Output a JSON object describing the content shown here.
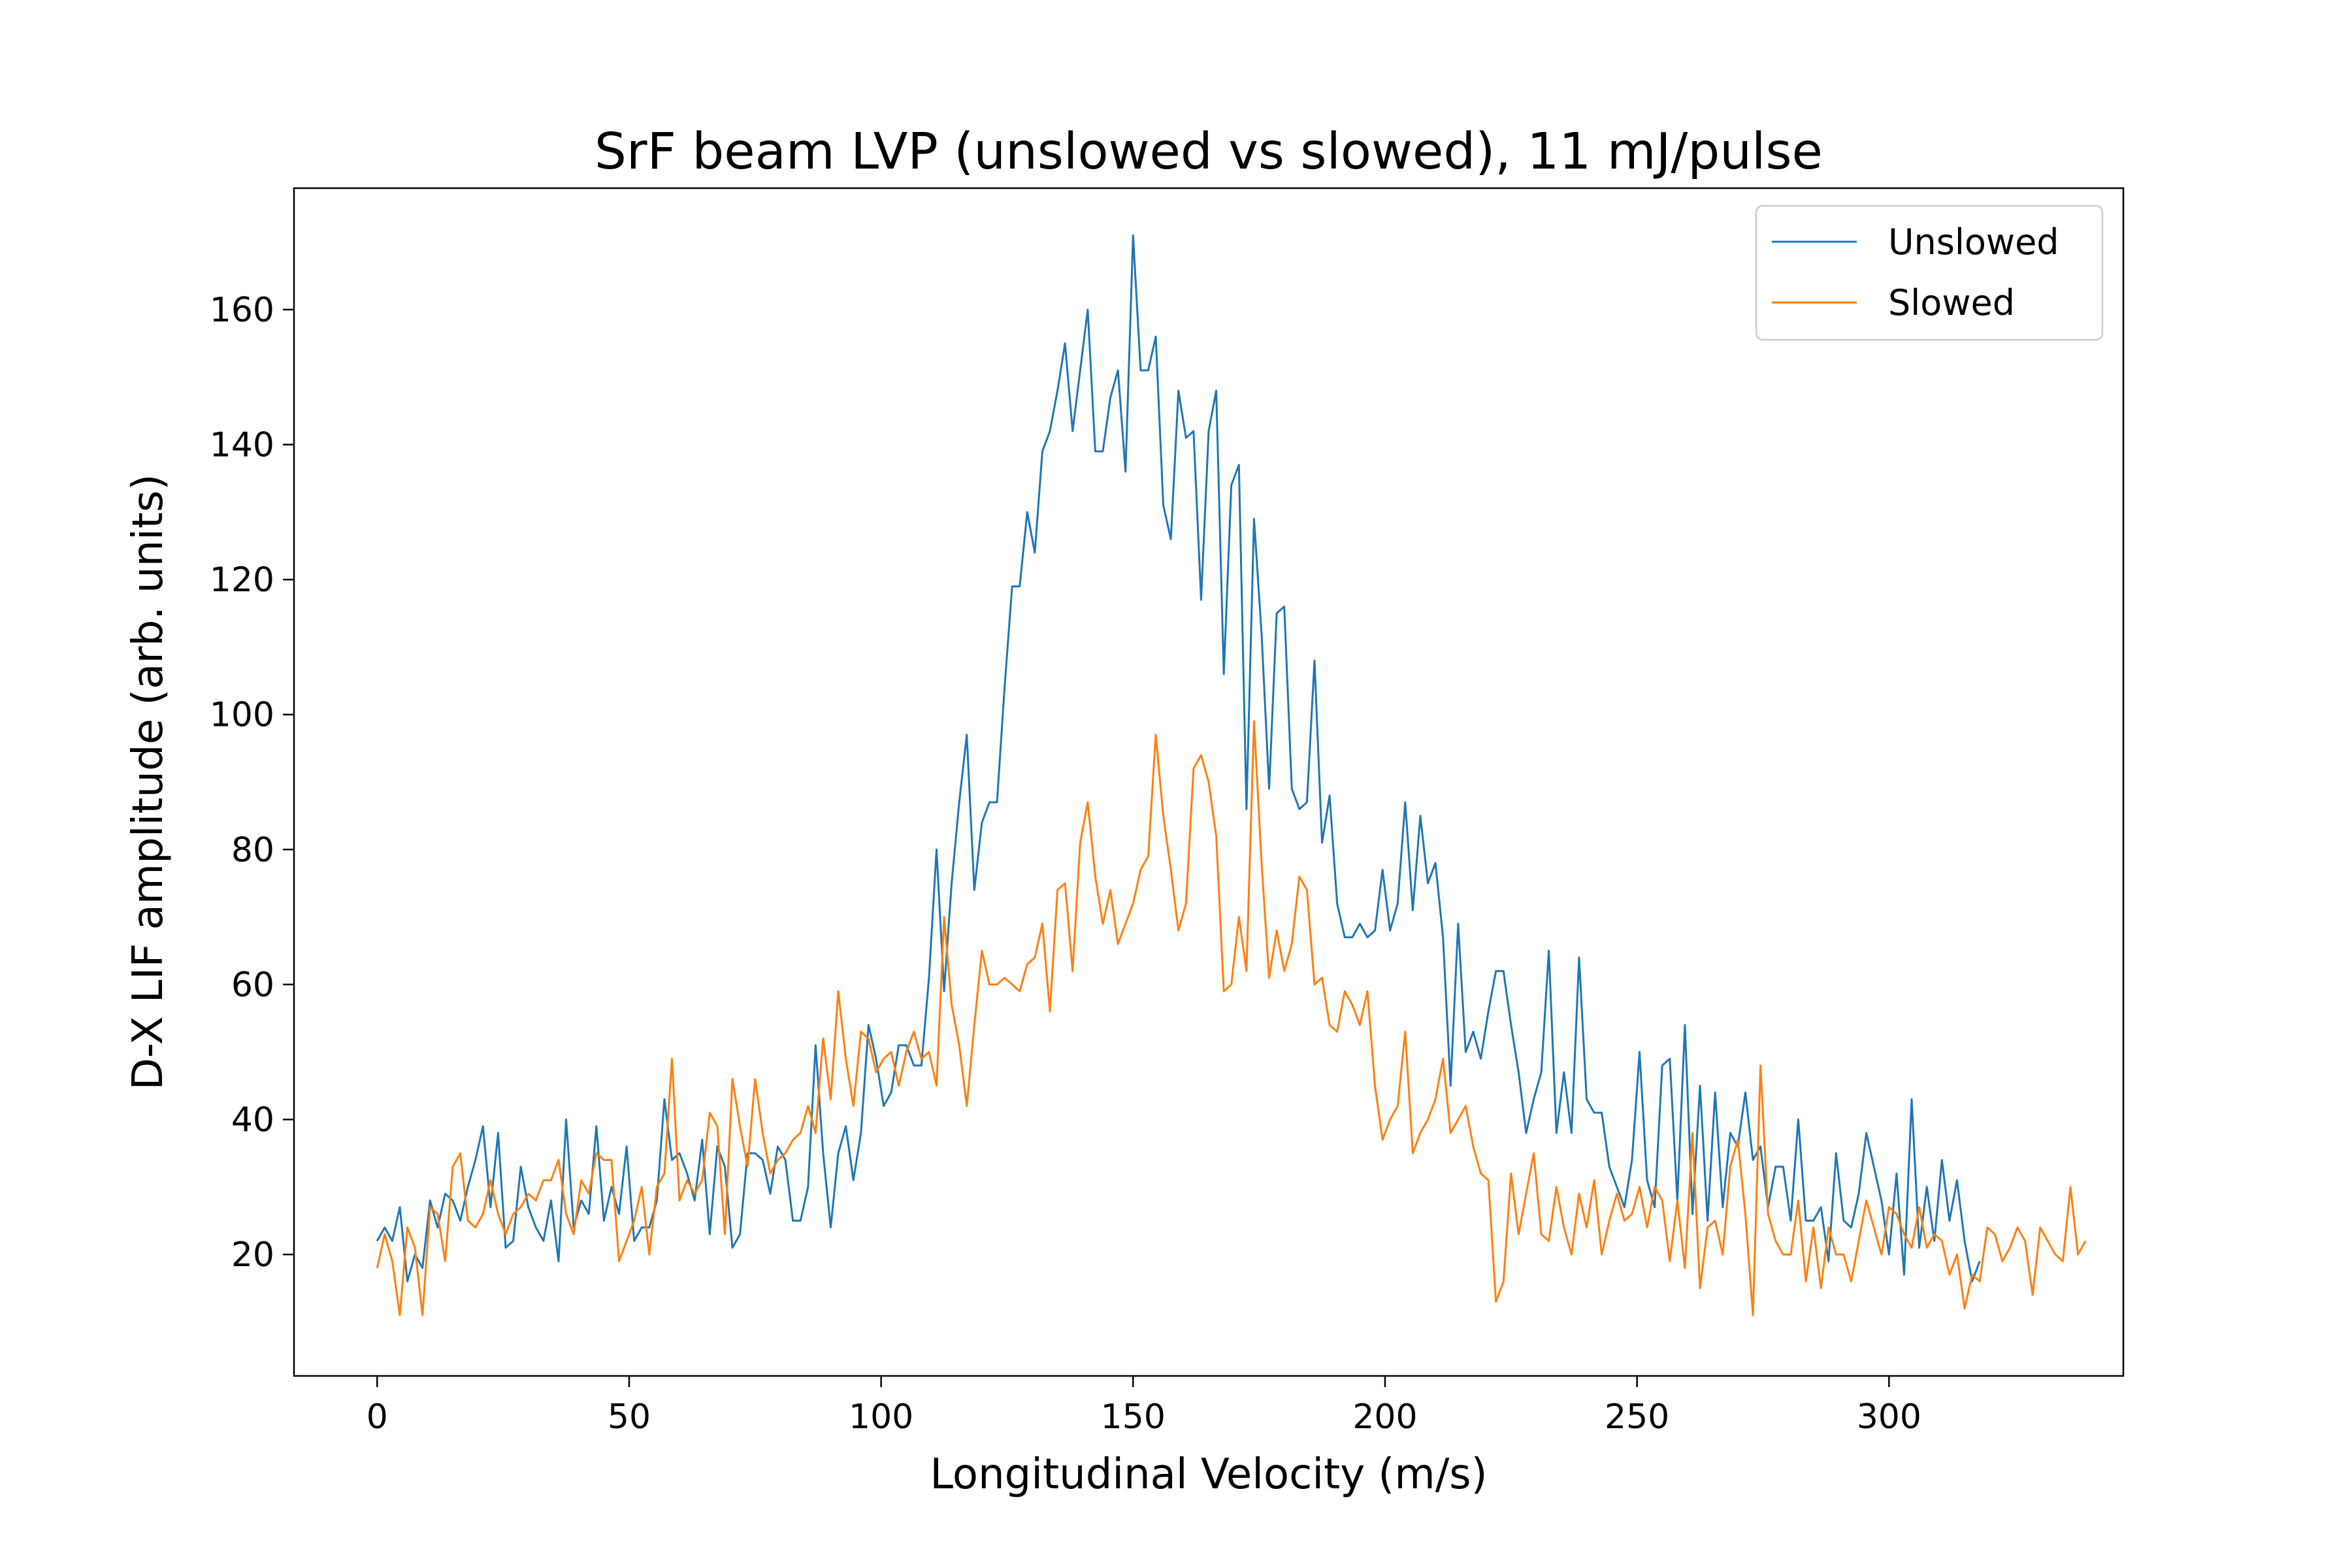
{
  "chart_data": {
    "type": "line",
    "title": "SrF beam LVP (unslowed vs slowed), 11 mJ/pulse",
    "xlabel": "Longitudinal Velocity (m/s)",
    "ylabel": "D-X LIF amplitude (arb. units)",
    "xlim": [
      -16.5,
      346.5
    ],
    "ylim": [
      2,
      178
    ],
    "xticks": [
      0,
      50,
      100,
      150,
      200,
      250,
      300
    ],
    "yticks": [
      20,
      40,
      60,
      80,
      100,
      120,
      140,
      160
    ],
    "xtick_labels": [
      "0",
      "50",
      "100",
      "150",
      "200",
      "250",
      "300"
    ],
    "ytick_labels": [
      "20",
      "40",
      "60",
      "80",
      "100",
      "120",
      "140",
      "160"
    ],
    "grid": false,
    "legend": "top-right",
    "x_start": 0,
    "x_step": 1.5,
    "series": [
      {
        "name": "Unslowed",
        "color": "#1f77b4",
        "values": [
          22,
          24,
          22,
          27,
          16,
          20,
          18,
          28,
          24,
          29,
          28,
          25,
          30,
          34,
          39,
          27,
          38,
          21,
          22,
          33,
          27,
          24,
          22,
          28,
          19,
          40,
          24,
          28,
          26,
          39,
          25,
          30,
          26,
          36,
          22,
          24,
          24,
          28,
          43,
          34,
          35,
          32,
          28,
          37,
          23,
          36,
          33,
          21,
          23,
          35,
          35,
          34,
          29,
          36,
          34,
          25,
          25,
          30,
          51,
          35,
          24,
          35,
          39,
          31,
          38,
          54,
          49,
          42,
          44,
          51,
          51,
          48,
          48,
          61,
          80,
          59,
          75,
          87,
          97,
          74,
          84,
          87,
          87,
          104,
          119,
          119,
          130,
          124,
          139,
          142,
          148,
          155,
          142,
          151,
          160,
          139,
          139,
          147,
          151,
          136,
          171,
          151,
          151,
          156,
          131,
          126,
          148,
          141,
          142,
          117,
          142,
          148,
          106,
          134,
          137,
          86,
          129,
          112,
          89,
          115,
          116,
          89,
          86,
          87,
          108,
          81,
          88,
          72,
          67,
          67,
          69,
          67,
          68,
          77,
          68,
          72,
          87,
          71,
          85,
          75,
          78,
          67,
          45,
          69,
          50,
          53,
          49,
          56,
          62,
          62,
          54,
          47,
          38,
          43,
          47,
          65,
          38,
          47,
          38,
          64,
          43,
          41,
          41,
          33,
          30,
          27,
          34,
          50,
          31,
          27,
          48,
          49,
          28,
          54,
          26,
          45,
          25,
          44,
          27,
          38,
          36,
          44,
          34,
          36,
          27,
          33,
          33,
          25,
          40,
          25,
          25,
          27,
          19,
          35,
          25,
          24,
          29,
          38,
          33,
          28,
          20,
          32,
          17,
          43,
          21,
          30,
          22,
          34,
          25,
          31,
          22,
          16,
          19
        ]
      },
      {
        "name": "Slowed",
        "color": "#ff7f0e",
        "values": [
          18,
          23,
          19,
          11,
          24,
          21,
          11,
          27,
          26,
          19,
          33,
          35,
          25,
          24,
          26,
          31,
          26,
          23,
          26,
          27,
          29,
          28,
          31,
          31,
          34,
          26,
          23,
          31,
          29,
          35,
          34,
          34,
          19,
          22,
          25,
          30,
          20,
          30,
          32,
          49,
          28,
          31,
          29,
          31,
          41,
          39,
          23,
          46,
          39,
          33,
          46,
          38,
          32,
          34,
          35,
          37,
          38,
          42,
          38,
          52,
          43,
          59,
          49,
          42,
          53,
          52,
          47,
          49,
          50,
          45,
          50,
          53,
          49,
          50,
          45,
          70,
          57,
          51,
          42,
          54,
          65,
          60,
          60,
          61,
          60,
          59,
          63,
          64,
          69,
          56,
          74,
          75,
          62,
          81,
          87,
          76,
          69,
          74,
          66,
          69,
          72,
          77,
          79,
          97,
          85,
          77,
          68,
          72,
          92,
          94,
          90,
          82,
          59,
          60,
          70,
          62,
          99,
          78,
          61,
          68,
          62,
          66,
          76,
          74,
          60,
          61,
          54,
          53,
          59,
          57,
          54,
          59,
          45,
          37,
          40,
          42,
          53,
          35,
          38,
          40,
          43,
          49,
          38,
          40,
          42,
          36,
          32,
          31,
          13,
          16,
          32,
          23,
          29,
          35,
          23,
          22,
          30,
          24,
          20,
          29,
          24,
          31,
          20,
          25,
          29,
          25,
          26,
          30,
          24,
          30,
          28,
          19,
          28,
          18,
          38,
          15,
          24,
          25,
          20,
          33,
          37,
          26,
          11,
          48,
          26,
          22,
          20,
          20,
          28,
          16,
          24,
          15,
          24,
          20,
          20,
          16,
          22,
          28,
          24,
          20,
          27,
          26,
          23,
          21,
          27,
          21,
          23,
          22,
          17,
          20,
          12,
          17,
          16,
          24,
          23,
          19,
          21,
          24,
          22,
          14,
          24,
          22,
          20,
          19,
          30,
          20,
          22
        ]
      }
    ]
  }
}
